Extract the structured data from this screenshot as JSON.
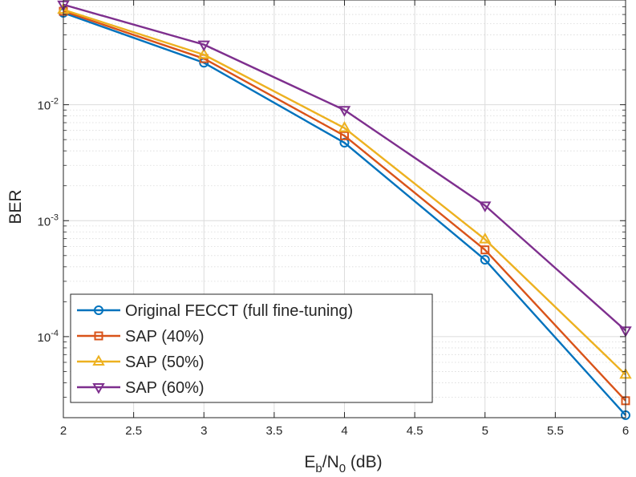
{
  "chart_data": {
    "type": "line",
    "title": "",
    "xlabel": "Eb/N0 (dB)",
    "xlabel_parts": {
      "base1": "E",
      "sub1": "b",
      "slash": "/N",
      "sub2": "0",
      "unit": " (dB)"
    },
    "ylabel": "BER",
    "xlim": [
      2,
      6
    ],
    "ylim": [
      2e-05,
      0.08
    ],
    "yscale": "log",
    "grid": true,
    "legend_position": "bottom-left",
    "x_ticks": [
      2,
      2.5,
      3,
      3.5,
      4,
      4.5,
      5,
      5.5,
      6
    ],
    "x_tick_labels": [
      "2",
      "2.5",
      "3",
      "3.5",
      "4",
      "4.5",
      "5",
      "5.5",
      "6"
    ],
    "y_ticks": [
      {
        "value": 0.01,
        "base": "10",
        "exp": "-2"
      },
      {
        "value": 0.001,
        "base": "10",
        "exp": "-3"
      },
      {
        "value": 0.0001,
        "base": "10",
        "exp": "-4"
      }
    ],
    "x": [
      2,
      3,
      4,
      5,
      6
    ],
    "series": [
      {
        "name": "Original FECCT (full fine-tuning)",
        "color": "#0072BD",
        "marker": "circle",
        "values": [
          0.062,
          0.023,
          0.0047,
          0.00046,
          2.1e-05
        ]
      },
      {
        "name": "SAP (40%)",
        "color": "#D95319",
        "marker": "square",
        "values": [
          0.064,
          0.025,
          0.0054,
          0.00056,
          2.8e-05
        ]
      },
      {
        "name": "SAP (50%)",
        "color": "#EDB120",
        "marker": "triangle-up",
        "values": [
          0.066,
          0.027,
          0.0063,
          0.00069,
          4.7e-05
        ]
      },
      {
        "name": "SAP (60%)",
        "color": "#7E2F8E",
        "marker": "triangle-down",
        "values": [
          0.073,
          0.033,
          0.009,
          0.00135,
          0.000113
        ]
      }
    ]
  }
}
